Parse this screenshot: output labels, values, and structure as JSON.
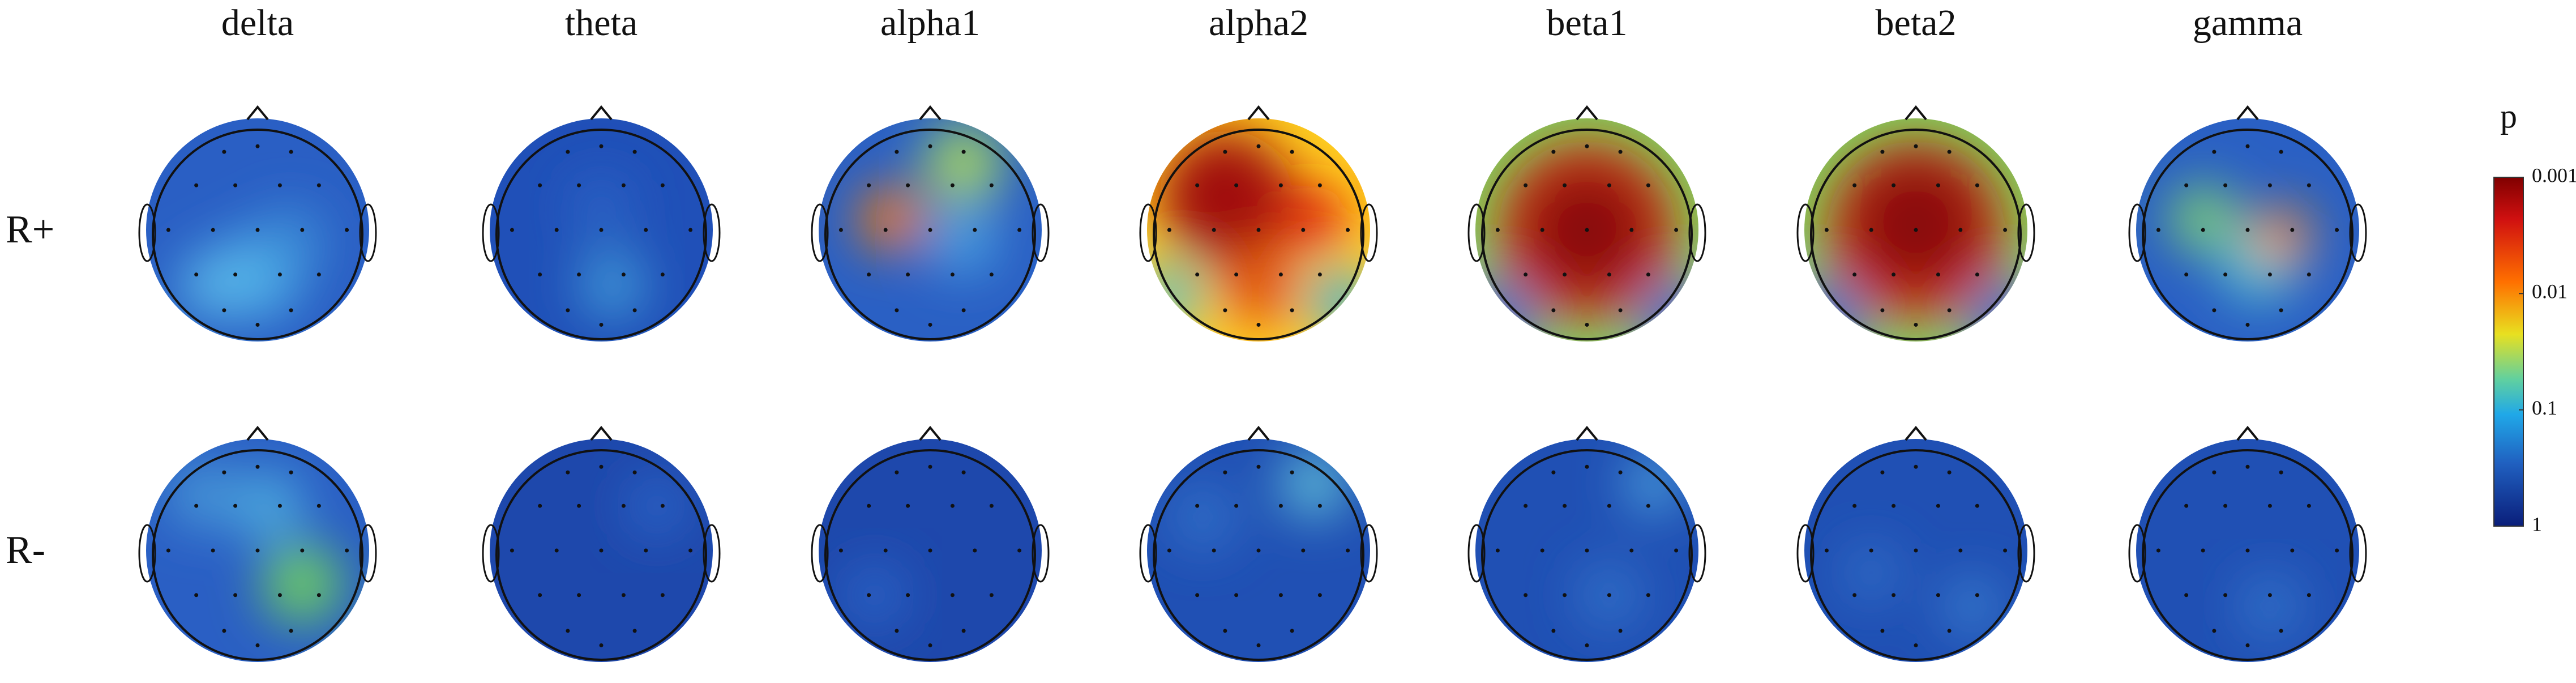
{
  "columns": [
    "delta",
    "theta",
    "alpha1",
    "alpha2",
    "beta1",
    "beta2",
    "gamma"
  ],
  "rows": [
    "R+",
    "R-"
  ],
  "colorbar": {
    "title": "p",
    "ticks": [
      0.001,
      0.01,
      0.1,
      1
    ],
    "log": true
  }
}
